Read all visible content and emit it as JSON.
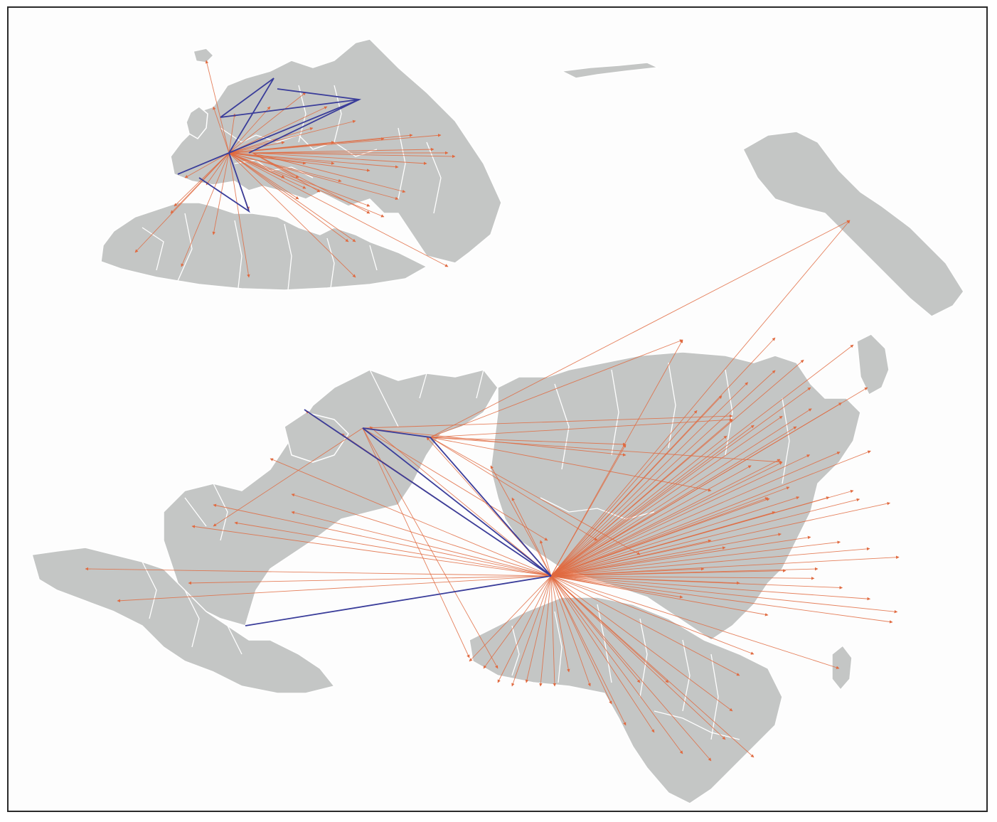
{
  "colors": {
    "background": "#fdfdfd",
    "land": "#c4c6c5",
    "country_border": "#ffffff",
    "frame": "#2a2a2a",
    "flow_arrow": "#e06a40",
    "highlight_route": "#3a3d9a"
  }
}
